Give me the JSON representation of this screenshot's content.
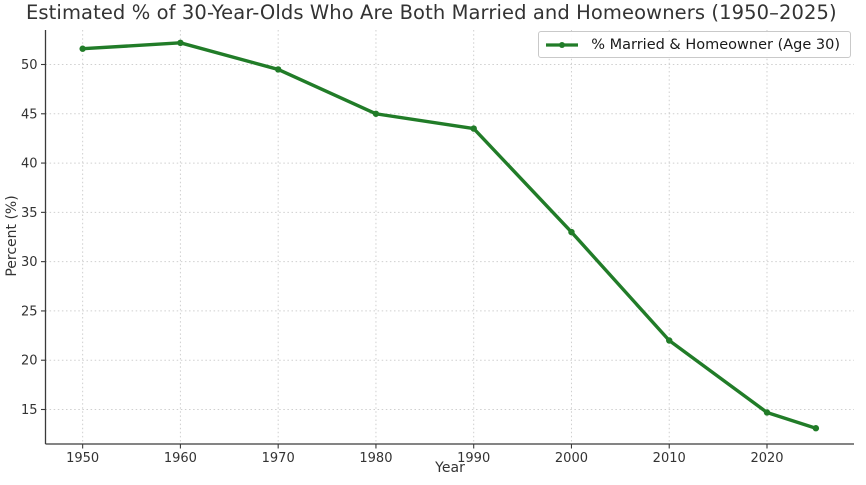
{
  "chart_data": {
    "type": "line",
    "title": "Estimated % of 30-Year-Olds Who Are Both Married and Homeowners (1950–2025)",
    "xlabel": "Year",
    "ylabel": "Percent (%)",
    "x": [
      1950,
      1960,
      1970,
      1980,
      1990,
      2000,
      2010,
      2020,
      2025
    ],
    "series": [
      {
        "name": "% Married & Homeowner (Age 30)",
        "values": [
          51.6,
          52.2,
          49.5,
          45.0,
          43.5,
          33.0,
          22.0,
          14.7,
          13.1
        ],
        "color": "#217c28",
        "marker": "circle",
        "line_width": 3.4
      }
    ],
    "xticks": [
      1950,
      1960,
      1970,
      1980,
      1990,
      2000,
      2010,
      2020
    ],
    "yticks": [
      15,
      20,
      25,
      30,
      35,
      40,
      45,
      50
    ],
    "xlim": [
      1946.2,
      2028.9
    ],
    "ylim": [
      11.5,
      53.5
    ],
    "grid": true,
    "grid_style": "dotted",
    "legend_position": "upper right",
    "spines": [
      "left",
      "bottom"
    ],
    "colors": {
      "line": "#217c28",
      "grid": "#cfcfcf",
      "spine": "#3a3a3a",
      "text": "#333333",
      "background": "#ffffff"
    }
  }
}
